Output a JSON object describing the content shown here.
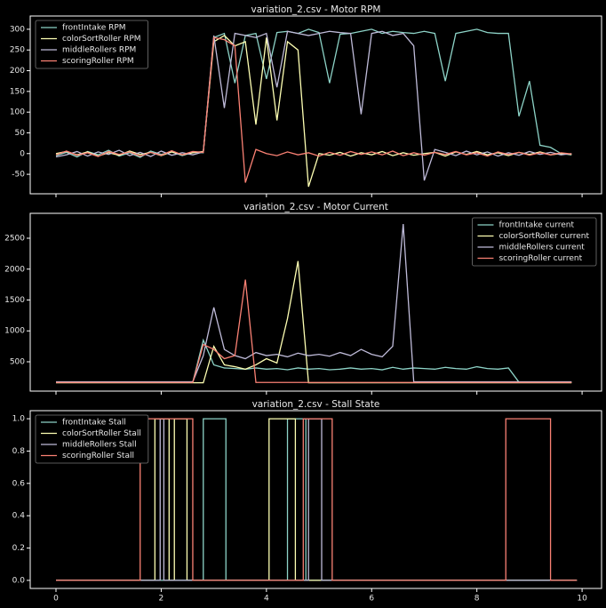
{
  "chart_data": [
    {
      "type": "line",
      "title": "variation_2.csv - Motor RPM",
      "legend": "upper left",
      "xlim": [
        -0.49,
        10.37
      ],
      "ylim": [
        -97,
        332
      ],
      "yticks": [
        -50,
        0,
        50,
        100,
        150,
        200,
        250,
        300
      ],
      "x": [
        0,
        0.2,
        0.4,
        0.6,
        0.8,
        1,
        1.2,
        1.4,
        1.6,
        1.8,
        2,
        2.2,
        2.4,
        2.6,
        2.8,
        3,
        3.2,
        3.4,
        3.6,
        3.8,
        4,
        4.2,
        4.4,
        4.6,
        4.8,
        5,
        5.2,
        5.4,
        5.6,
        5.8,
        6,
        6.2,
        6.4,
        6.6,
        6.8,
        7,
        7.2,
        7.4,
        7.6,
        7.8,
        8,
        8.2,
        8.4,
        8.6,
        8.8,
        9,
        9.2,
        9.4,
        9.6,
        9.8
      ],
      "series": [
        {
          "name": "frontIntake RPM",
          "color": "#8dd3c7",
          "values": [
            -5,
            3,
            -8,
            5,
            -3,
            8,
            -6,
            2,
            -9,
            6,
            -2,
            4,
            -5,
            3,
            2,
            280,
            290,
            170,
            285,
            290,
            180,
            292,
            295,
            290,
            300,
            292,
            170,
            288,
            290,
            295,
            300,
            290,
            295,
            292,
            290,
            295,
            290,
            175,
            290,
            295,
            300,
            292,
            290,
            290,
            90,
            175,
            20,
            15,
            0,
            -3
          ]
        },
        {
          "name": "colorSortRoller RPM",
          "color": "#feffb3",
          "values": [
            0,
            5,
            -3,
            4,
            -6,
            2,
            -4,
            6,
            -2,
            3,
            -5,
            4,
            -3,
            2,
            5,
            270,
            285,
            260,
            270,
            70,
            280,
            80,
            270,
            250,
            -80,
            0,
            -4,
            3,
            -6,
            2,
            -3,
            5,
            -5,
            2,
            -4,
            0,
            3,
            -6,
            4,
            -2,
            5,
            -3,
            2,
            -5,
            3,
            -2,
            4,
            -3,
            0,
            -2
          ]
        },
        {
          "name": "middleRollers RPM",
          "color": "#bfbbd9",
          "values": [
            -8,
            -3,
            5,
            -6,
            4,
            -2,
            8,
            -5,
            3,
            -7,
            6,
            -4,
            2,
            -3,
            4,
            285,
            110,
            290,
            285,
            280,
            290,
            160,
            295,
            290,
            285,
            290,
            295,
            292,
            290,
            95,
            290,
            295,
            285,
            290,
            260,
            -65,
            10,
            3,
            -5,
            6,
            -3,
            4,
            -6,
            2,
            -4,
            5,
            -2,
            3,
            -3,
            0
          ]
        },
        {
          "name": "scoringRoller RPM",
          "color": "#fa8174",
          "values": [
            -3,
            6,
            -4,
            2,
            -7,
            5,
            -2,
            4,
            -6,
            3,
            -4,
            7,
            -3,
            5,
            3,
            280,
            275,
            260,
            -70,
            10,
            0,
            -5,
            4,
            -3,
            2,
            -6,
            3,
            -4,
            5,
            -2,
            4,
            -3,
            6,
            -5,
            2,
            -4,
            3,
            -2,
            5,
            -3,
            2,
            -6,
            4,
            -2,
            3,
            -4,
            2,
            -3,
            2,
            -1
          ]
        }
      ]
    },
    {
      "type": "line",
      "title": "variation_2.csv - Motor Current",
      "legend": "upper right",
      "xlim": [
        -0.49,
        10.37
      ],
      "ylim": [
        25,
        2903
      ],
      "yticks": [
        500,
        1000,
        1500,
        2000,
        2500
      ],
      "x": [
        0,
        0.2,
        0.4,
        0.6,
        0.8,
        1,
        1.2,
        1.4,
        1.6,
        1.8,
        2,
        2.2,
        2.4,
        2.6,
        2.8,
        3,
        3.2,
        3.4,
        3.6,
        3.8,
        4,
        4.2,
        4.4,
        4.6,
        4.8,
        5,
        5.2,
        5.4,
        5.6,
        5.8,
        6,
        6.2,
        6.4,
        6.6,
        6.8,
        7,
        7.2,
        7.4,
        7.6,
        7.8,
        8,
        8.2,
        8.4,
        8.6,
        8.8,
        9,
        9.2,
        9.4,
        9.6,
        9.8
      ],
      "series": [
        {
          "name": "frontIntake current",
          "color": "#8dd3c7",
          "values": [
            170,
            170,
            170,
            170,
            170,
            170,
            170,
            170,
            170,
            170,
            170,
            170,
            170,
            170,
            850,
            450,
            400,
            390,
            380,
            400,
            380,
            390,
            370,
            400,
            380,
            390,
            370,
            380,
            400,
            380,
            390,
            370,
            410,
            380,
            400,
            390,
            380,
            410,
            390,
            380,
            420,
            390,
            380,
            400,
            170,
            170,
            170,
            170,
            170,
            170
          ]
        },
        {
          "name": "colorSortRoller current",
          "color": "#feffb3",
          "values": [
            160,
            160,
            160,
            160,
            160,
            160,
            160,
            160,
            160,
            160,
            160,
            160,
            160,
            160,
            160,
            750,
            450,
            420,
            380,
            450,
            550,
            480,
            1200,
            2130,
            160,
            160,
            160,
            160,
            160,
            160,
            160,
            160,
            160,
            160,
            160,
            160,
            160,
            160,
            160,
            160,
            160,
            160,
            160,
            160,
            160,
            160,
            160,
            160,
            160,
            160
          ]
        },
        {
          "name": "middleRollers current",
          "color": "#bfbbd9",
          "values": [
            175,
            175,
            175,
            175,
            175,
            175,
            175,
            175,
            175,
            175,
            175,
            175,
            175,
            175,
            600,
            1380,
            700,
            600,
            550,
            650,
            600,
            620,
            580,
            640,
            600,
            620,
            590,
            650,
            600,
            700,
            620,
            580,
            750,
            2730,
            175,
            175,
            175,
            175,
            175,
            175,
            175,
            175,
            175,
            175,
            175,
            175,
            175,
            175,
            175,
            175
          ]
        },
        {
          "name": "scoringRoller current",
          "color": "#fa8174",
          "values": [
            165,
            165,
            165,
            165,
            165,
            165,
            165,
            165,
            165,
            165,
            165,
            165,
            165,
            165,
            780,
            700,
            550,
            600,
            1830,
            165,
            165,
            165,
            165,
            165,
            165,
            165,
            165,
            165,
            165,
            165,
            165,
            165,
            165,
            165,
            165,
            165,
            165,
            165,
            165,
            165,
            165,
            165,
            165,
            165,
            165,
            165,
            165,
            165,
            165,
            165
          ]
        }
      ]
    },
    {
      "type": "line",
      "title": "variation_2.csv - Stall State",
      "legend": "upper left",
      "xlim": [
        -0.49,
        10.37
      ],
      "ylim": [
        -0.05,
        1.05
      ],
      "xticks": [
        0,
        2,
        4,
        6,
        8,
        10
      ],
      "yticks": [
        {
          "value": 0,
          "label": "0.0"
        },
        0.2,
        0.4,
        0.6,
        0.8,
        {
          "value": 1,
          "label": "1.0"
        }
      ],
      "series": [
        {
          "name": "frontIntake Stall",
          "color": "#8dd3c7",
          "x": [
            0,
            2.8,
            2.8,
            3.23,
            3.23,
            4.4,
            4.4,
            4.75,
            4.75,
            9.9
          ],
          "values": [
            0,
            0,
            1,
            1,
            0,
            0,
            1,
            1,
            0,
            0
          ]
        },
        {
          "name": "colorSortRoller Stall",
          "color": "#feffb3",
          "x": [
            0,
            1.88,
            1.88,
            2.15,
            2.15,
            2.25,
            2.25,
            2.49,
            2.49,
            4.05,
            4.05,
            4.55,
            4.55,
            9.9
          ],
          "values": [
            0,
            0,
            1,
            1,
            0,
            0,
            1,
            1,
            0,
            0,
            1,
            1,
            0,
            0
          ]
        },
        {
          "name": "middleRollers Stall",
          "color": "#bfbbd9",
          "x": [
            0,
            1.98,
            1.98,
            2.05,
            2.05,
            4.8,
            4.8,
            5.05,
            5.05,
            9.9
          ],
          "values": [
            0,
            0,
            1,
            1,
            0,
            0,
            1,
            1,
            0,
            0
          ]
        },
        {
          "name": "scoringRoller Stall",
          "color": "#fa8174",
          "x": [
            0,
            1.6,
            1.6,
            2.6,
            2.6,
            4.7,
            4.7,
            5.25,
            5.25,
            8.55,
            8.55,
            9.4,
            9.4,
            9.9
          ],
          "values": [
            0,
            0,
            1,
            1,
            0,
            0,
            1,
            1,
            0,
            0,
            1,
            1,
            0,
            0
          ]
        }
      ]
    }
  ]
}
